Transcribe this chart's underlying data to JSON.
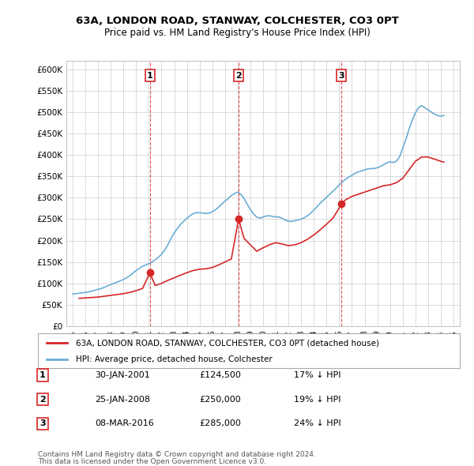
{
  "title": "63A, LONDON ROAD, STANWAY, COLCHESTER, CO3 0PT",
  "subtitle": "Price paid vs. HM Land Registry's House Price Index (HPI)",
  "ylabel_ticks": [
    "£0",
    "£50K",
    "£100K",
    "£150K",
    "£200K",
    "£250K",
    "£300K",
    "£350K",
    "£400K",
    "£450K",
    "£500K",
    "£550K",
    "£600K"
  ],
  "ytick_values": [
    0,
    50000,
    100000,
    150000,
    200000,
    250000,
    300000,
    350000,
    400000,
    450000,
    500000,
    550000,
    600000
  ],
  "hpi_color": "#6baed6",
  "price_color": "#d62728",
  "vline_color": "#d62728",
  "transaction_marker_color": "#d62728",
  "transactions": [
    {
      "date": 2001.08,
      "price": 124500,
      "label": "1"
    },
    {
      "date": 2008.07,
      "price": 250000,
      "label": "2"
    },
    {
      "date": 2016.19,
      "price": 285000,
      "label": "3"
    }
  ],
  "legend_entries": [
    {
      "label": "63A, LONDON ROAD, STANWAY, COLCHESTER, CO3 0PT (detached house)",
      "color": "#d62728"
    },
    {
      "label": "HPI: Average price, detached house, Colchester",
      "color": "#6baed6"
    }
  ],
  "table_rows": [
    {
      "num": "1",
      "date": "30-JAN-2001",
      "price": "£124,500",
      "change": "17% ↓ HPI"
    },
    {
      "num": "2",
      "date": "25-JAN-2008",
      "price": "£250,000",
      "change": "19% ↓ HPI"
    },
    {
      "num": "3",
      "date": "08-MAR-2016",
      "price": "£285,000",
      "change": "24% ↓ HPI"
    }
  ],
  "footnote1": "Contains HM Land Registry data © Crown copyright and database right 2024.",
  "footnote2": "This data is licensed under the Open Government Licence v3.0.",
  "hpi_data_x": [
    1995.0,
    1995.25,
    1995.5,
    1995.75,
    1996.0,
    1996.25,
    1996.5,
    1996.75,
    1997.0,
    1997.25,
    1997.5,
    1997.75,
    1998.0,
    1998.25,
    1998.5,
    1998.75,
    1999.0,
    1999.25,
    1999.5,
    1999.75,
    2000.0,
    2000.25,
    2000.5,
    2000.75,
    2001.0,
    2001.25,
    2001.5,
    2001.75,
    2002.0,
    2002.25,
    2002.5,
    2002.75,
    2003.0,
    2003.25,
    2003.5,
    2003.75,
    2004.0,
    2004.25,
    2004.5,
    2004.75,
    2005.0,
    2005.25,
    2005.5,
    2005.75,
    2006.0,
    2006.25,
    2006.5,
    2006.75,
    2007.0,
    2007.25,
    2007.5,
    2007.75,
    2008.0,
    2008.25,
    2008.5,
    2008.75,
    2009.0,
    2009.25,
    2009.5,
    2009.75,
    2010.0,
    2010.25,
    2010.5,
    2010.75,
    2011.0,
    2011.25,
    2011.5,
    2011.75,
    2012.0,
    2012.25,
    2012.5,
    2012.75,
    2013.0,
    2013.25,
    2013.5,
    2013.75,
    2014.0,
    2014.25,
    2014.5,
    2014.75,
    2015.0,
    2015.25,
    2015.5,
    2015.75,
    2016.0,
    2016.25,
    2016.5,
    2016.75,
    2017.0,
    2017.25,
    2017.5,
    2017.75,
    2018.0,
    2018.25,
    2018.5,
    2018.75,
    2019.0,
    2019.25,
    2019.5,
    2019.75,
    2020.0,
    2020.25,
    2020.5,
    2020.75,
    2021.0,
    2021.25,
    2021.5,
    2021.75,
    2022.0,
    2022.25,
    2022.5,
    2022.75,
    2023.0,
    2023.25,
    2023.5,
    2023.75,
    2024.0,
    2024.25
  ],
  "hpi_data_y": [
    75000,
    76000,
    77000,
    78000,
    79000,
    80000,
    82000,
    84000,
    86000,
    88000,
    91000,
    94000,
    97000,
    100000,
    103000,
    106000,
    109000,
    113000,
    118000,
    124000,
    130000,
    135000,
    140000,
    143000,
    146000,
    150000,
    155000,
    161000,
    168000,
    178000,
    190000,
    205000,
    218000,
    228000,
    238000,
    245000,
    252000,
    258000,
    263000,
    265000,
    265000,
    264000,
    263000,
    264000,
    267000,
    272000,
    278000,
    285000,
    292000,
    298000,
    305000,
    310000,
    313000,
    308000,
    298000,
    285000,
    272000,
    262000,
    255000,
    252000,
    255000,
    257000,
    258000,
    256000,
    255000,
    255000,
    252000,
    248000,
    245000,
    245000,
    246000,
    248000,
    250000,
    253000,
    258000,
    264000,
    271000,
    279000,
    287000,
    294000,
    301000,
    308000,
    315000,
    322000,
    330000,
    337000,
    343000,
    348000,
    352000,
    357000,
    360000,
    362000,
    365000,
    367000,
    368000,
    368000,
    370000,
    373000,
    377000,
    381000,
    384000,
    382000,
    385000,
    395000,
    415000,
    435000,
    460000,
    480000,
    498000,
    510000,
    515000,
    510000,
    505000,
    500000,
    495000,
    492000,
    490000,
    492000
  ],
  "price_data_x": [
    1995.5,
    1996.0,
    1996.5,
    1997.0,
    1997.5,
    1998.0,
    1998.5,
    1999.0,
    1999.5,
    2000.0,
    2000.5,
    2001.08,
    2001.5,
    2002.0,
    2002.5,
    2003.0,
    2003.5,
    2004.0,
    2004.5,
    2005.0,
    2005.5,
    2006.0,
    2006.5,
    2007.0,
    2007.5,
    2008.07,
    2008.5,
    2009.0,
    2009.5,
    2010.0,
    2010.5,
    2011.0,
    2011.5,
    2012.0,
    2012.5,
    2013.0,
    2013.5,
    2014.0,
    2014.5,
    2015.0,
    2015.5,
    2016.19,
    2016.5,
    2017.0,
    2017.5,
    2018.0,
    2018.5,
    2019.0,
    2019.5,
    2020.0,
    2020.5,
    2021.0,
    2021.5,
    2022.0,
    2022.5,
    2023.0,
    2023.5,
    2024.0,
    2024.25
  ],
  "price_data_y": [
    65000,
    66000,
    67000,
    68000,
    70000,
    72000,
    74000,
    76000,
    79000,
    83000,
    88000,
    124500,
    95000,
    100000,
    107000,
    113000,
    119000,
    125000,
    130000,
    133000,
    134000,
    137000,
    143000,
    150000,
    157000,
    250000,
    205000,
    190000,
    175000,
    183000,
    190000,
    195000,
    192000,
    188000,
    190000,
    195000,
    203000,
    213000,
    225000,
    238000,
    252000,
    285000,
    295000,
    303000,
    308000,
    313000,
    318000,
    323000,
    328000,
    330000,
    335000,
    345000,
    365000,
    385000,
    395000,
    395000,
    390000,
    385000,
    383000
  ],
  "xlim": [
    1994.5,
    2025.5
  ],
  "ylim": [
    0,
    620000
  ],
  "bg_color": "#ffffff",
  "grid_color": "#cccccc"
}
